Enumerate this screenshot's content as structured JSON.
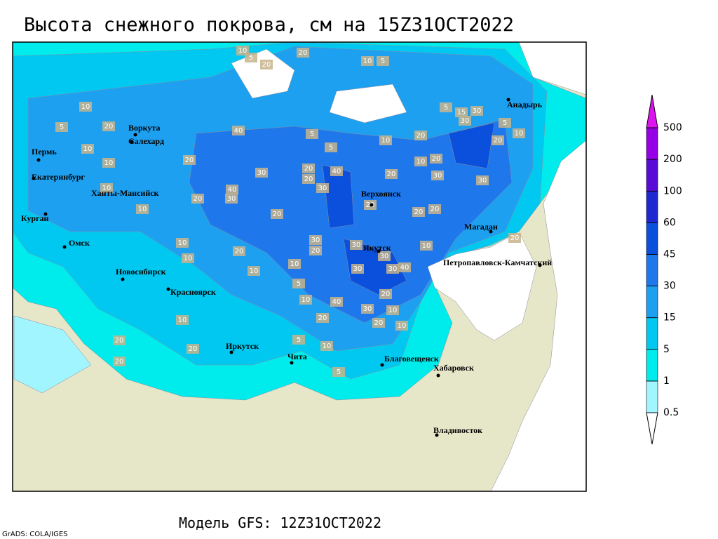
{
  "title": "Высота снежного покрова, см на 15Z31OCT2022",
  "footer": "Модель GFS: 12Z31OCT2022",
  "credit": "GrADS: COLA/IGES",
  "cities": [
    "Воркута",
    "Салехард",
    "Пермь",
    "Екатеринбург",
    "Ханты-Мансийск",
    "Курган",
    "Омск",
    "Новосибирск",
    "Красноярск",
    "Иркутск",
    "Чита",
    "Верхоянск",
    "Якутск",
    "Магадан",
    "Анадырь",
    "Петропавловск-Камчатский",
    "Благовещенск",
    "Хабаровск",
    "Владивосток"
  ],
  "contour_labels": [
    20,
    10,
    5,
    20,
    10,
    5,
    10,
    5,
    20,
    10,
    20,
    10,
    10,
    10,
    40,
    5,
    5,
    10,
    20,
    5,
    15,
    30,
    30,
    5,
    10,
    20,
    30,
    20,
    40,
    20,
    30,
    40,
    30,
    20,
    20,
    10,
    20,
    30,
    30,
    20,
    20,
    20,
    20,
    30,
    20,
    30,
    20,
    10,
    10,
    10,
    10,
    5,
    30,
    30,
    30,
    40,
    10,
    20,
    40,
    10,
    20,
    30,
    10,
    20,
    20,
    10,
    10,
    5,
    10,
    5,
    20,
    20,
    20
  ],
  "colorbar": {
    "levels": [
      0.5,
      1,
      5,
      15,
      30,
      45,
      60,
      100,
      200,
      500
    ],
    "colors": [
      "#ffffff",
      "#a0f5ff",
      "#00ebeb",
      "#00c8f0",
      "#1ea0f0",
      "#1e78eb",
      "#0a50dc",
      "#1e28d2",
      "#5a0ad7",
      "#9600e6",
      "#dc14f0"
    ]
  }
}
